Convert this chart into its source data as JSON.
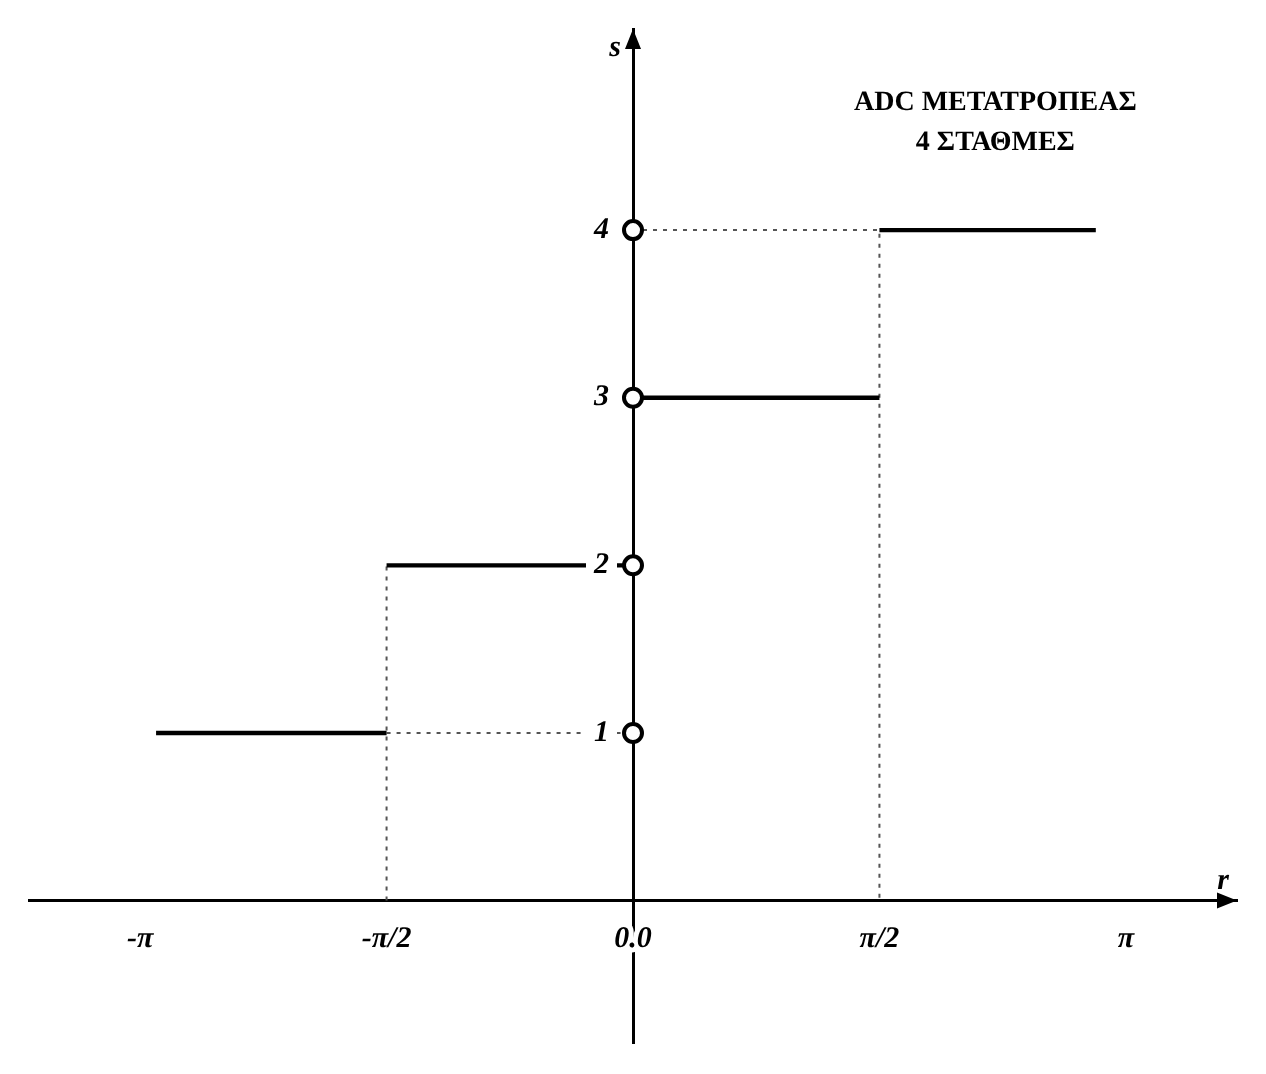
{
  "chart_data": {
    "type": "line",
    "title": "ADC ΜΕΤΑΤΡΟΠΕΑΣ",
    "subtitle": "4 ΣΤΑΘΜΕΣ",
    "xlabel": "r",
    "ylabel": "s",
    "xlim": [
      -3.85,
      3.85
    ],
    "ylim": [
      -0.85,
      5.2
    ],
    "xticks": [
      {
        "value": -3.1416,
        "label": "-π"
      },
      {
        "value": -1.5708,
        "label": "-π/2"
      },
      {
        "value": 0,
        "label": "0.0"
      },
      {
        "value": 1.5708,
        "label": "π/2"
      },
      {
        "value": 3.1416,
        "label": "π"
      }
    ],
    "yticks": [
      1,
      2,
      3,
      4
    ],
    "grid": false,
    "legend": false,
    "series": [
      {
        "type": "line",
        "color": "#000000",
        "marker": "none",
        "line_style": "solid",
        "x": [
          -3.04,
          -1.5708,
          null,
          -1.5708,
          0,
          null,
          0,
          1.5708,
          null,
          1.5708,
          2.95
        ],
        "values": [
          1,
          1,
          null,
          2,
          2,
          null,
          3,
          3,
          null,
          4,
          4
        ]
      },
      {
        "type": "line",
        "color": "#555555",
        "marker": "none",
        "line_style": "dotted",
        "x": [
          -1.5708,
          -1.5708,
          null,
          -1.5708,
          0,
          null,
          0,
          1.5708,
          1.5708
        ],
        "values": [
          0,
          2,
          null,
          1,
          1,
          null,
          4,
          4,
          0
        ]
      },
      {
        "type": "scatter",
        "color": "#000000",
        "marker": "circle",
        "x": [
          0,
          0,
          0,
          0
        ],
        "values": [
          1,
          2,
          3,
          4
        ]
      }
    ]
  }
}
